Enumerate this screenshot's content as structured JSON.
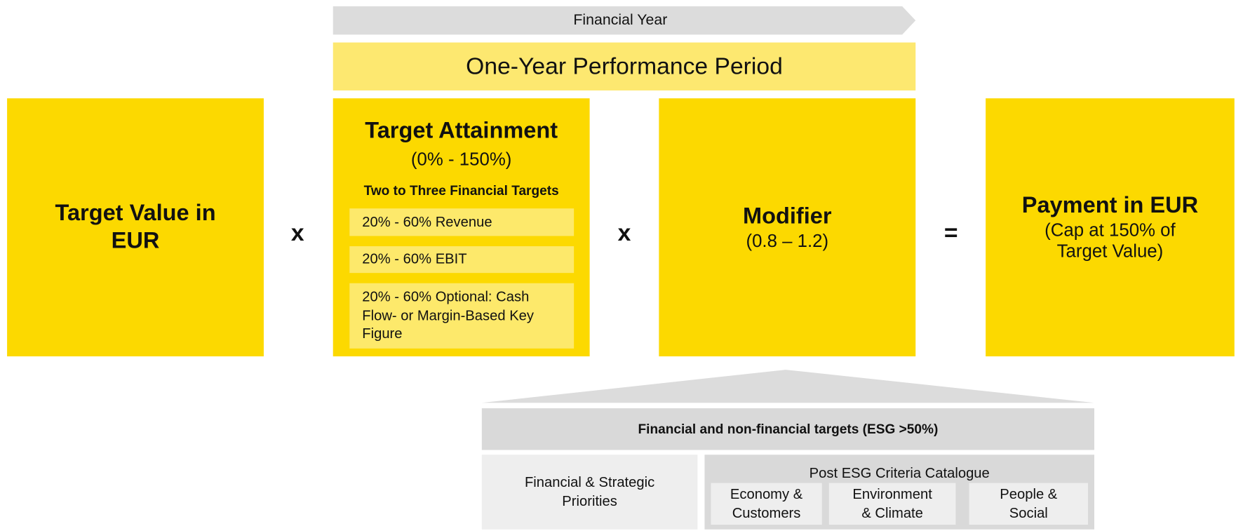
{
  "header": {
    "financial_year": "Financial Year",
    "performance_period": "One-Year Performance Period"
  },
  "target_value": {
    "title": "Target Value in EUR"
  },
  "operators": [
    "x",
    "x",
    "="
  ],
  "target_attainment": {
    "title": "Target Attainment",
    "range": "(0% - 150%)",
    "subtitle": "Two to Three Financial Targets",
    "items": [
      "20% - 60% Revenue",
      "20% - 60% EBIT",
      "20% - 60% Optional: Cash Flow- or Margin-Based Key Figure"
    ]
  },
  "modifier": {
    "title": "Modifier",
    "range": "(0.8 – 1.2)"
  },
  "payment": {
    "title": "Payment in EUR",
    "note": "(Cap at 150% of Target Value)"
  },
  "esg": {
    "header": "Financial and non-financial targets (ESG >50%)",
    "financial_priorities": "Financial & Strategic Priorities",
    "catalogue": {
      "title": "Post ESG Criteria Catalogue",
      "items": [
        "Economy & Customers",
        "Environment & Climate",
        "People & Social"
      ]
    }
  }
}
